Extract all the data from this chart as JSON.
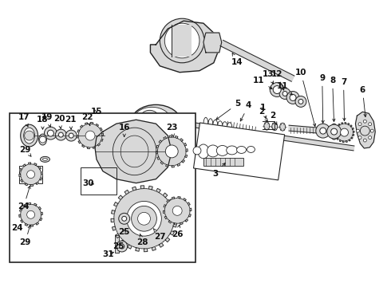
{
  "bg_color": "#ffffff",
  "line_color": "#222222",
  "fill_light": "#d8d8d8",
  "fill_dark": "#888888",
  "figsize": [
    4.9,
    3.6
  ],
  "dpi": 100
}
